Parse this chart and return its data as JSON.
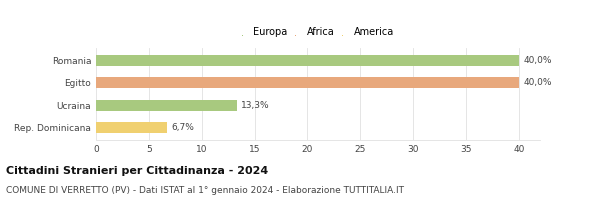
{
  "categories": [
    "Romania",
    "Egitto",
    "Ucraina",
    "Rep. Dominicana"
  ],
  "values": [
    40.0,
    40.0,
    13.3,
    6.7
  ],
  "colors": [
    "#a8c97f",
    "#e8a87c",
    "#a8c97f",
    "#f0d070"
  ],
  "labels": [
    "40,0%",
    "40,0%",
    "13,3%",
    "6,7%"
  ],
  "legend": [
    {
      "label": "Europa",
      "color": "#a8c97f"
    },
    {
      "label": "Africa",
      "color": "#e8a87c"
    },
    {
      "label": "America",
      "color": "#f0d070"
    }
  ],
  "xlim": [
    0,
    42
  ],
  "xticks": [
    0,
    5,
    10,
    15,
    20,
    25,
    30,
    35,
    40
  ],
  "title": "Cittadini Stranieri per Cittadinanza - 2024",
  "subtitle": "COMUNE DI VERRETTO (PV) - Dati ISTAT al 1° gennaio 2024 - Elaborazione TUTTITALIA.IT",
  "title_fontsize": 8,
  "subtitle_fontsize": 6.5,
  "bar_label_fontsize": 6.5,
  "legend_fontsize": 7,
  "ytick_fontsize": 6.5,
  "xtick_fontsize": 6.5,
  "background_color": "#ffffff",
  "grid_color": "#e0e0e0",
  "bar_height": 0.5
}
